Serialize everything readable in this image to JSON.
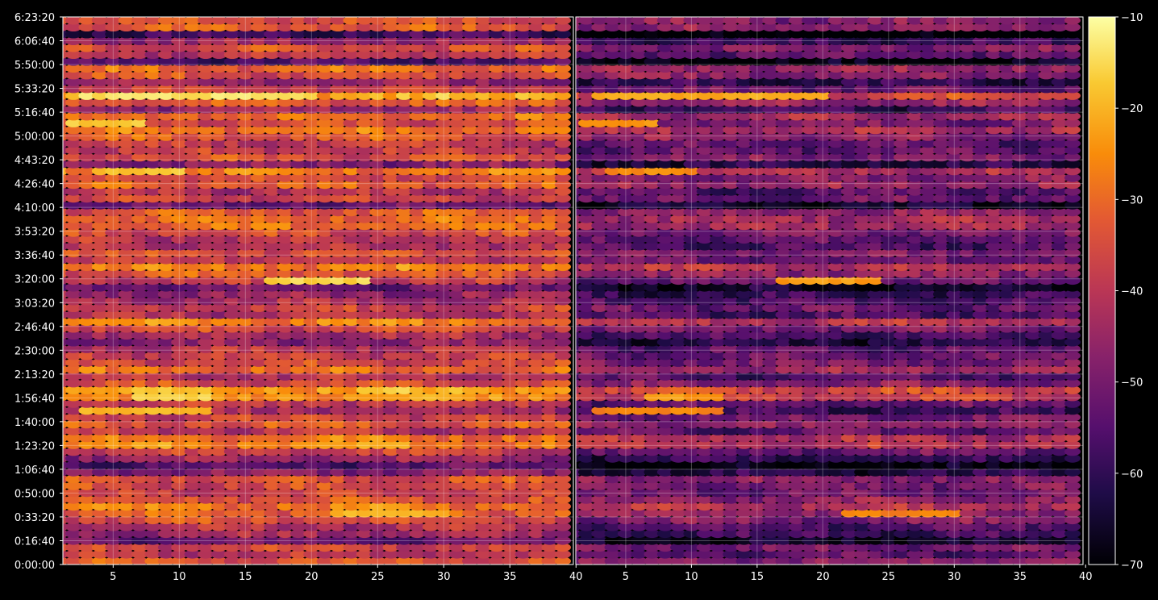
{
  "chart_data": {
    "type": "heatmap",
    "title": "",
    "xlabel": "",
    "ylabel": "",
    "background": "#000000",
    "grid": true,
    "colormap": "inferno",
    "colorbar": {
      "range": [
        -70,
        -10
      ],
      "tick_values": [
        -10,
        -20,
        -30,
        -40,
        -50,
        -60,
        -70
      ],
      "tick_labels": [
        "−10",
        "−20",
        "−30",
        "−40",
        "−50",
        "−60",
        "−70"
      ]
    },
    "y_axis": {
      "range": [
        0,
        23000
      ],
      "tick_values": [
        0,
        1000,
        2000,
        3000,
        4000,
        5000,
        6000,
        7000,
        8000,
        9000,
        10000,
        11000,
        12000,
        13000,
        14000,
        15000,
        16000,
        17000,
        18000,
        19000,
        20000,
        21000,
        22000,
        23000
      ],
      "tick_labels": [
        "0:00:00",
        "0:16:40",
        "0:33:20",
        "0:50:00",
        "1:06:40",
        "1:23:20",
        "1:40:00",
        "1:56:40",
        "2:13:20",
        "2:30:00",
        "2:46:40",
        "3:03:20",
        "3:20:00",
        "3:36:40",
        "3:53:20",
        "4:10:00",
        "4:26:40",
        "4:43:20",
        "5:00:00",
        "5:16:40",
        "5:33:20",
        "5:50:00",
        "6:06:40",
        "6:23:20"
      ]
    },
    "panels": [
      {
        "x_range": [
          1.2,
          39.8
        ],
        "x_tick_values": [
          5,
          10,
          15,
          20,
          25,
          30,
          35,
          40
        ],
        "x_tick_labels": [
          "5",
          "10",
          "15",
          "20",
          "25",
          "30",
          "35",
          "40"
        ],
        "channels": 39,
        "offset_db": 0
      },
      {
        "x_range": [
          1.2,
          39.8
        ],
        "x_tick_values": [
          5,
          10,
          15,
          20,
          25,
          30,
          35,
          40
        ],
        "x_tick_labels": [
          "5",
          "10",
          "15",
          "20",
          "25",
          "30",
          "35",
          "40"
        ],
        "channels": 39,
        "offset_db": -14
      }
    ],
    "time_rows": 80,
    "row_profile_db": [
      -34,
      -40,
      -37,
      -52,
      -44,
      -42,
      -35,
      -31,
      -28,
      -33,
      -38,
      -36,
      -34,
      -48,
      -55,
      -46,
      -38,
      -26,
      -28,
      -40,
      -33,
      -37,
      -45,
      -39,
      -24,
      -22,
      -35,
      -41,
      -30,
      -36,
      -38,
      -40,
      -48,
      -43,
      -36,
      -27,
      -42,
      -38,
      -43,
      -46,
      -52,
      -39,
      -33,
      -27,
      -38,
      -35,
      -42,
      -40,
      -36,
      -30,
      -29,
      -33,
      -52,
      -38,
      -41,
      -32,
      -35,
      -28,
      -48,
      -35,
      -39,
      -40,
      -33,
      -29,
      -36,
      -30,
      -45,
      -32,
      -21,
      -38,
      -46,
      -34,
      -31,
      -56,
      -40,
      -35,
      -45,
      -58,
      -33,
      -34
    ],
    "bright_spots": [
      {
        "row": 68,
        "channels": [
          3,
          20
        ],
        "db": -14
      },
      {
        "row": 24,
        "channels": [
          7,
          12
        ],
        "db": -16
      },
      {
        "row": 41,
        "channels": [
          17,
          24
        ],
        "db": -16
      },
      {
        "row": 57,
        "channels": [
          4,
          10
        ],
        "db": -18
      },
      {
        "row": 64,
        "channels": [
          2,
          7
        ],
        "db": -17
      },
      {
        "row": 7,
        "channels": [
          22,
          30
        ],
        "db": -20
      },
      {
        "row": 22,
        "channels": [
          3,
          12
        ],
        "db": -19
      }
    ]
  }
}
